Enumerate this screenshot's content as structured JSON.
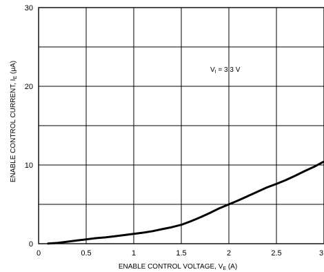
{
  "chart_data": {
    "type": "line",
    "xlabel": {
      "main": "ENABLE CONTROL VOLTAGE, V",
      "sub": "E",
      "unit": " (A)"
    },
    "ylabel": {
      "main": "ENABLE CONTROL CURRENT, I",
      "sub": "E",
      "unit": " (μA)"
    },
    "annotation": {
      "main": "V",
      "sub": "I",
      "rest": " = 3.3 V"
    },
    "xlim": [
      0,
      3
    ],
    "ylim": [
      0,
      30
    ],
    "x_ticks": [
      0,
      0.5,
      1,
      1.5,
      2,
      2.5,
      3
    ],
    "x_tick_labels": [
      "0",
      "0.5",
      "1",
      "1.5",
      "2",
      "2.5",
      "3"
    ],
    "y_ticks": [
      0,
      10,
      20,
      30
    ],
    "y_tick_labels": [
      "0",
      "10",
      "20",
      "30"
    ],
    "x_grid": [
      0.5,
      1,
      1.5,
      2,
      2.5
    ],
    "y_grid": [
      5,
      10,
      15,
      20,
      25
    ],
    "grid": true,
    "series": [
      {
        "color": "#000000",
        "x": [
          0.1,
          0.2,
          0.3,
          0.4,
          0.5,
          0.6,
          0.7,
          0.8,
          0.9,
          1.0,
          1.1,
          1.2,
          1.3,
          1.4,
          1.5,
          1.6,
          1.7,
          1.8,
          1.9,
          2.0,
          2.1,
          2.2,
          2.3,
          2.4,
          2.5,
          2.6,
          2.7,
          2.8,
          2.9,
          3.0
        ],
        "y": [
          0.02,
          0.1,
          0.25,
          0.4,
          0.55,
          0.7,
          0.8,
          0.95,
          1.1,
          1.25,
          1.4,
          1.6,
          1.85,
          2.1,
          2.4,
          2.85,
          3.35,
          3.9,
          4.5,
          5.0,
          5.5,
          6.05,
          6.6,
          7.15,
          7.6,
          8.1,
          8.65,
          9.25,
          9.8,
          10.4
        ]
      }
    ]
  }
}
